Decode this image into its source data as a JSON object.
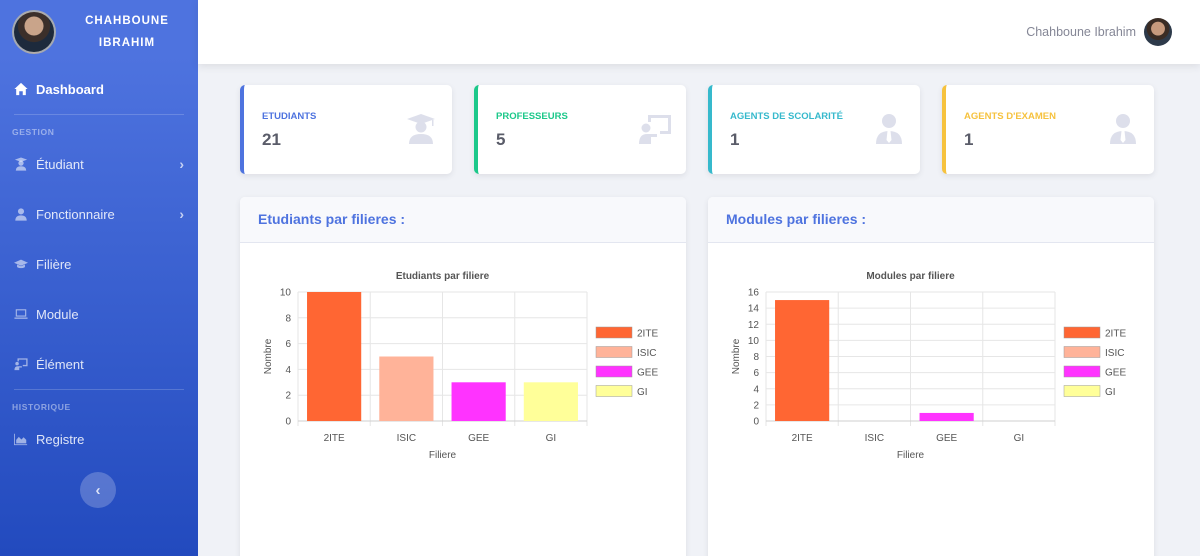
{
  "sidebar": {
    "brand": {
      "line1": "CHAHBOUNE",
      "line2": "IBRAHIM"
    },
    "dashboard": {
      "label": "Dashboard",
      "icon": "home-icon"
    },
    "heading_gestion": "GESTION",
    "items": [
      {
        "label": "Étudiant",
        "icon": "user-graduate-icon",
        "has_arrow": true
      },
      {
        "label": "Fonctionnaire",
        "icon": "user-icon",
        "has_arrow": true
      },
      {
        "label": "Filière",
        "icon": "graduation-cap-icon",
        "has_arrow": false
      },
      {
        "label": "Module",
        "icon": "laptop-icon",
        "has_arrow": false
      },
      {
        "label": "Élément",
        "icon": "chalkboard-icon",
        "has_arrow": false
      }
    ],
    "heading_historique": "HISTORIQUE",
    "registre": {
      "label": "Registre",
      "icon": "chart-area-icon"
    },
    "toggle_glyph": "‹",
    "chevron_glyph": "›"
  },
  "topbar": {
    "user_name": "Chahboune Ibrahim"
  },
  "stats": [
    {
      "label": "ETUDIANTS",
      "value": "21",
      "color": "#4e73df",
      "icon": "user-graduate-icon"
    },
    {
      "label": "PROFESSEURS",
      "value": "5",
      "color": "#1cc88a",
      "icon": "chalkboard-teacher-icon"
    },
    {
      "label": "AGENTS DE SCOLARITÉ",
      "value": "1",
      "color": "#36b9cc",
      "icon": "user-tie-icon"
    },
    {
      "label": "AGENTS D'EXAMEN",
      "value": "1",
      "color": "#f6c23e",
      "icon": "user-tie-icon"
    }
  ],
  "cards": {
    "left_title": "Etudiants par filieres :",
    "right_title": "Modules par filieres :"
  },
  "chart_data": [
    {
      "type": "bar",
      "title": "Etudiants par filiere",
      "xlabel": "Filiere",
      "ylabel": "Nombre",
      "categories": [
        "2ITE",
        "ISIC",
        "GEE",
        "GI"
      ],
      "values": [
        10,
        5,
        3,
        3
      ],
      "colors": [
        "#ff6633",
        "#ffb399",
        "#ff33ff",
        "#ffff99"
      ],
      "ylim": [
        0,
        10
      ],
      "yticks": [
        0,
        2,
        4,
        6,
        8,
        10
      ],
      "legend": "right",
      "grid": true
    },
    {
      "type": "bar",
      "title": "Modules par filiere",
      "xlabel": "Filiere",
      "ylabel": "Nombre",
      "categories": [
        "2ITE",
        "ISIC",
        "GEE",
        "GI"
      ],
      "values": [
        15,
        0,
        1,
        0
      ],
      "colors": [
        "#ff6633",
        "#ffb399",
        "#ff33ff",
        "#ffff99"
      ],
      "ylim": [
        0,
        16
      ],
      "yticks": [
        0,
        2,
        4,
        6,
        8,
        10,
        12,
        14,
        16
      ],
      "legend": "right",
      "grid": true
    }
  ]
}
